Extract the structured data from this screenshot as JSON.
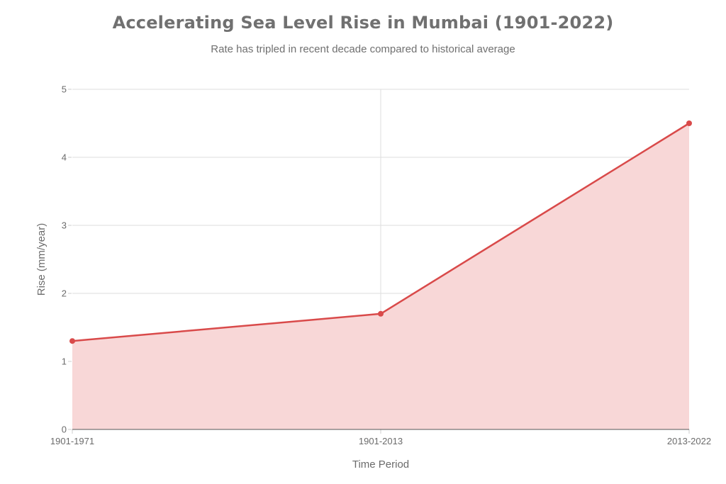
{
  "chart_data": {
    "type": "area",
    "title": "Accelerating Sea Level Rise in Mumbai (1901-2022)",
    "subtitle": "Rate has tripled in recent decade compared to historical average",
    "xlabel": "Time Period",
    "ylabel": "Rise (mm/year)",
    "categories": [
      "1901-1971",
      "1901-2013",
      "2013-2022"
    ],
    "series": [
      {
        "values": [
          1.3,
          1.7,
          4.5
        ]
      }
    ],
    "ylim": [
      0,
      5
    ],
    "yticks": [
      0,
      1,
      2,
      3,
      4,
      5
    ],
    "grid": true,
    "legend": "none",
    "colors": {
      "line": "#d94a4a",
      "fill": "#f8d7d7",
      "grid": "#dddddd",
      "axis": "#555555",
      "text": "#6b6b6b"
    }
  }
}
